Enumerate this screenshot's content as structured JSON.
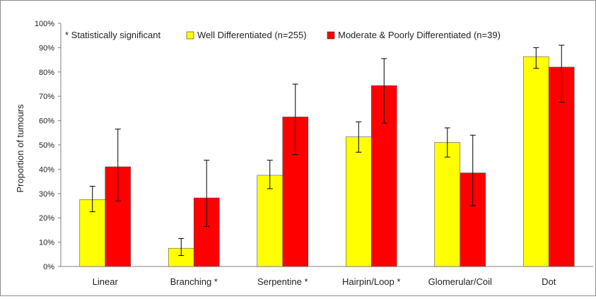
{
  "chart_data": {
    "type": "bar",
    "title": "",
    "xlabel": "",
    "ylabel": "Proportion of tumours",
    "ylim": [
      0,
      100
    ],
    "y_ticks": [
      "0%",
      "10%",
      "20%",
      "30%",
      "40%",
      "50%",
      "60%",
      "70%",
      "80%",
      "90%",
      "100%"
    ],
    "categories": [
      "Linear",
      "Branching *",
      "Serpentine *",
      "Hairpin/Loop *",
      "Glomerular/Coil",
      "Dot"
    ],
    "series": [
      {
        "name": "Well Differentiated (n=255)",
        "color": "#ffff00",
        "values": [
          27.5,
          7.5,
          37.5,
          53.3,
          51.0,
          86.3
        ],
        "error_low": [
          22.5,
          4.5,
          32.0,
          47.0,
          45.0,
          81.5
        ],
        "error_high": [
          33.0,
          11.5,
          43.7,
          59.5,
          57.0,
          90.0
        ]
      },
      {
        "name": "Moderate & Poorly Differentiated (n=39)",
        "color": "#ff0000",
        "values": [
          41.0,
          28.2,
          61.5,
          74.4,
          38.5,
          82.0
        ],
        "error_low": [
          27.0,
          16.5,
          46.0,
          59.0,
          25.0,
          67.5
        ],
        "error_high": [
          56.5,
          43.7,
          75.0,
          85.5,
          54.0,
          91.0
        ]
      }
    ],
    "legend": {
      "position": "top",
      "note": "* Statistically significant"
    },
    "grid": false
  }
}
